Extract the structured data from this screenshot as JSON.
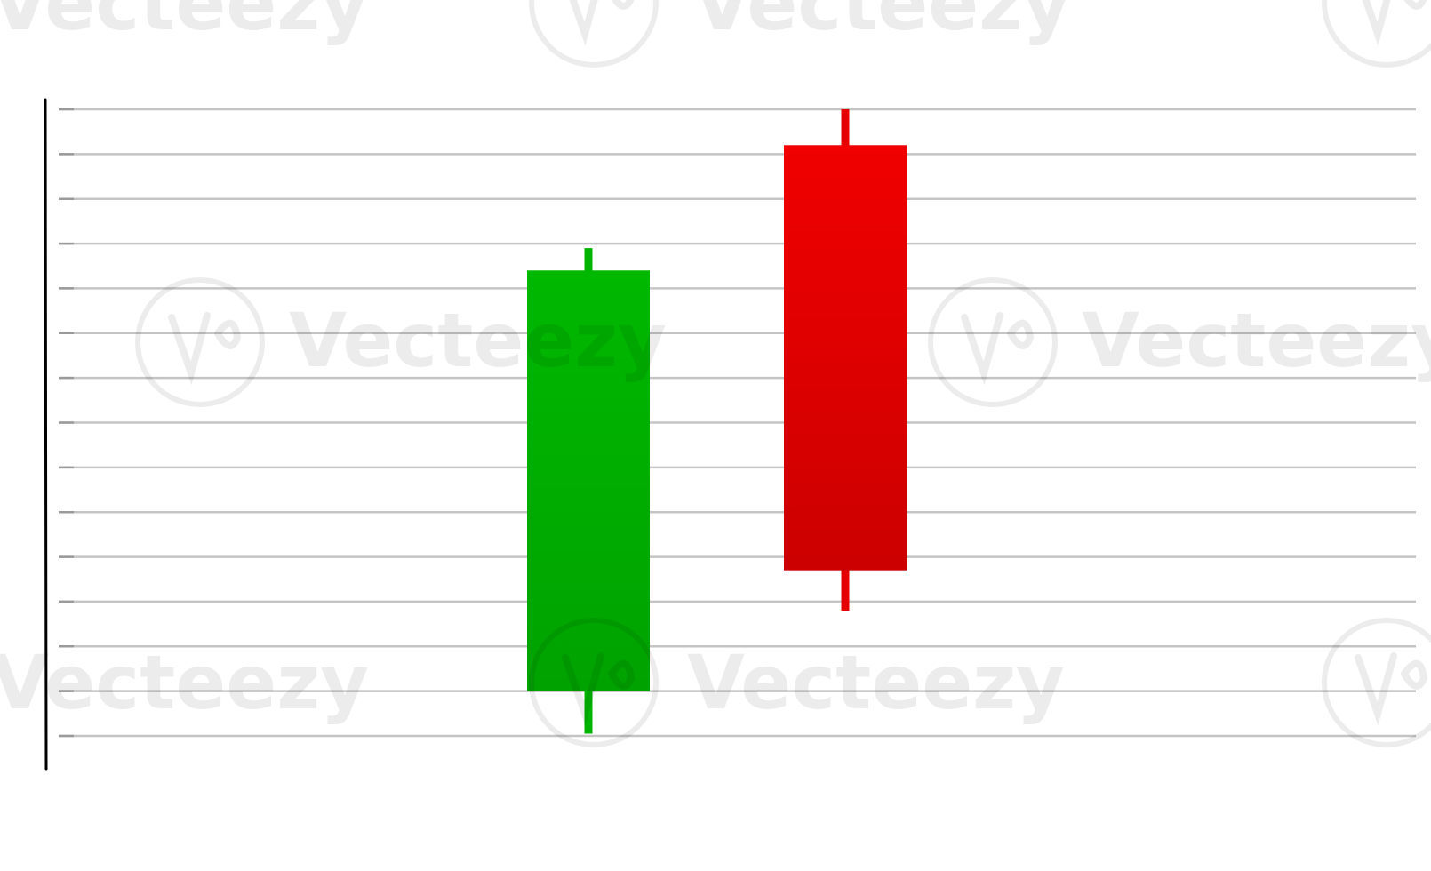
{
  "chart_data": {
    "type": "candlestick",
    "title": "",
    "xlabel": "",
    "ylabel": "",
    "grid": true,
    "legend": "none",
    "ylim": [
      0,
      14
    ],
    "ygrid_count": 15,
    "candles": [
      {
        "open": 1.0,
        "high": 10.9,
        "low": 0.05,
        "close": 10.4,
        "direction": "up",
        "color": "#00b400"
      },
      {
        "open": 13.2,
        "high": 14.0,
        "low": 2.8,
        "close": 3.7,
        "direction": "down",
        "color": "#e60000"
      }
    ],
    "colors": {
      "up_top": "#00b800",
      "up_bottom": "#00a200",
      "down_top": "#f00000",
      "down_bottom": "#cc0000",
      "grid": "#c4c4c4",
      "axis": "#000000"
    }
  },
  "watermark": {
    "text": "Vecteezy",
    "color": "#000000"
  }
}
